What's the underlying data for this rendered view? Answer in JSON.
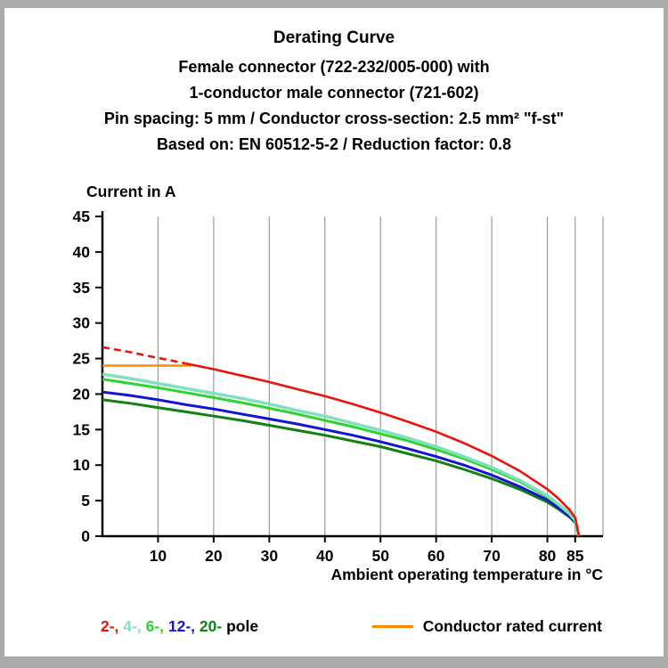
{
  "header": {
    "title": "Derating Curve",
    "sub1": "Female connector (722-232/005-000) with",
    "sub2": "1-conductor male connector (721-602)",
    "sub3": "Pin spacing: 5 mm / Conductor cross-section: 2.5 mm² \"f-st\"",
    "sub4": "Based on: EN 60512-5-2 / Reduction factor: 0.8"
  },
  "chart_data": {
    "type": "line",
    "title": "Derating Curve",
    "xlabel": "Ambient operating temperature in °C",
    "ylabel": "Current in A",
    "xlim": [
      0,
      90
    ],
    "ylim": [
      0,
      45
    ],
    "xticks": [
      10,
      20,
      30,
      40,
      50,
      60,
      70,
      80,
      85
    ],
    "yticks": [
      0,
      5,
      10,
      15,
      20,
      25,
      30,
      35,
      40,
      45
    ],
    "grid_x": [
      10,
      20,
      30,
      40,
      50,
      60,
      70,
      80,
      85,
      90
    ],
    "grid_color": "#9b9b9b",
    "x": [
      0,
      5,
      10,
      15,
      20,
      25,
      30,
      35,
      40,
      45,
      50,
      55,
      60,
      65,
      70,
      75,
      80,
      82,
      84,
      85,
      85.7
    ],
    "series": [
      {
        "name": "20-pole",
        "color": "#128012",
        "width": 3,
        "y": [
          19.2,
          18.7,
          18.1,
          17.5,
          16.9,
          16.3,
          15.6,
          14.9,
          14.2,
          13.4,
          12.6,
          11.6,
          10.6,
          9.4,
          8.1,
          6.6,
          4.8,
          3.8,
          2.7,
          1.9,
          0
        ]
      },
      {
        "name": "12-pole",
        "color": "#1414d2",
        "width": 3,
        "y": [
          20.3,
          19.8,
          19.2,
          18.5,
          17.9,
          17.2,
          16.5,
          15.8,
          15.0,
          14.2,
          13.3,
          12.3,
          11.2,
          10.0,
          8.6,
          7.0,
          5.1,
          4.0,
          2.8,
          2.0,
          0
        ]
      },
      {
        "name": "6-pole",
        "color": "#2fd32f",
        "width": 3,
        "y": [
          22.1,
          21.5,
          20.9,
          20.2,
          19.5,
          18.8,
          18.0,
          17.2,
          16.3,
          15.4,
          14.4,
          13.4,
          12.2,
          10.9,
          9.4,
          7.7,
          5.5,
          4.4,
          3.1,
          2.2,
          0
        ]
      },
      {
        "name": "4-pole",
        "color": "#80e0c0",
        "width": 3.5,
        "y": [
          22.8,
          22.2,
          21.5,
          20.8,
          20.1,
          19.4,
          18.6,
          17.7,
          16.9,
          15.9,
          14.9,
          13.8,
          12.6,
          11.2,
          9.7,
          7.9,
          5.7,
          4.5,
          3.2,
          2.2,
          0
        ]
      },
      {
        "name": "2-pole",
        "color": "#e8130c",
        "width": 2.6,
        "dash_until": 15,
        "y": [
          26.6,
          25.9,
          25.1,
          24.3,
          23.5,
          22.6,
          21.7,
          20.7,
          19.7,
          18.6,
          17.4,
          16.1,
          14.7,
          13.1,
          11.3,
          9.2,
          6.6,
          5.3,
          3.7,
          2.6,
          0
        ]
      }
    ],
    "rated_current": {
      "label": "Conductor rated current",
      "value": 24,
      "x_from": 0,
      "x_to": 16,
      "color": "#fb8c00"
    }
  },
  "legend": {
    "poles": [
      {
        "text": "2-,",
        "color": "#e8130c"
      },
      {
        "text": "4-,",
        "color": "#80e0c0"
      },
      {
        "text": "6-,",
        "color": "#2fd32f"
      },
      {
        "text": "12-,",
        "color": "#1414d2"
      },
      {
        "text": "20-",
        "color": "#128012"
      }
    ],
    "pole_word": "pole",
    "rated_label": "Conductor rated current",
    "rated_color": "#fb8c00"
  }
}
